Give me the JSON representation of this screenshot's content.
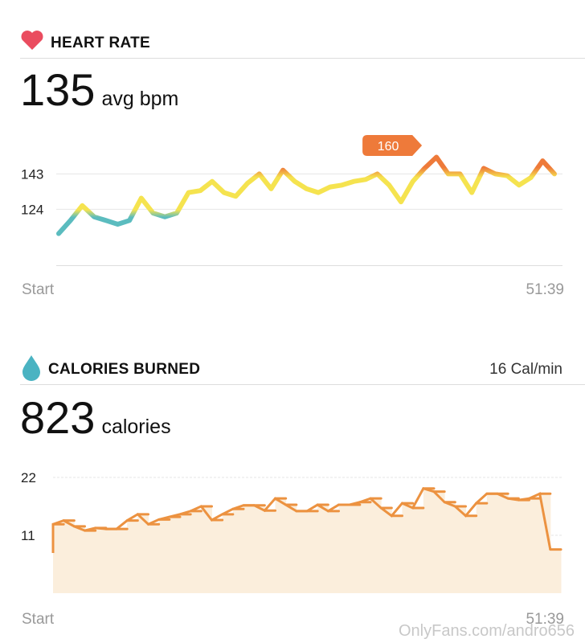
{
  "chart_data": [
    {
      "type": "line",
      "title": "HEART RATE",
      "summary_value": 135,
      "summary_unit": "avg bpm",
      "annotation": 160,
      "x_labels": [
        "Start",
        "51:39"
      ],
      "values": [
        111,
        118,
        126,
        120,
        118,
        116,
        118,
        130,
        122,
        120,
        122,
        133,
        134,
        139,
        133,
        131,
        138,
        143,
        135,
        145,
        139,
        135,
        133,
        136,
        137,
        139,
        140,
        143,
        137,
        128,
        139,
        146,
        152,
        143,
        143,
        133,
        146,
        143,
        142,
        137,
        141,
        150,
        143
      ],
      "ylim": [
        94,
        163
      ],
      "yticks": [
        143,
        124
      ],
      "grid": true,
      "colors": {
        "high": "#ee7a3a",
        "mid": "#f5e34f",
        "low": "#5bbcbf"
      }
    },
    {
      "type": "step",
      "title": "CALORIES BURNED",
      "rate_label": "16 Cal/min",
      "summary_value": 823,
      "summary_unit": "calories",
      "x_labels": [
        "Start",
        "51:39"
      ],
      "values": [
        13.1,
        13.8,
        12.7,
        11.9,
        12.4,
        12.2,
        12.2,
        13.8,
        15,
        13.1,
        14,
        14.5,
        15,
        15.6,
        16.5,
        13.9,
        15,
        16,
        16.7,
        16.7,
        15.7,
        18,
        16.8,
        15.6,
        15.6,
        16.8,
        15.6,
        16.8,
        16.8,
        17.3,
        18,
        16.2,
        14.7,
        17.1,
        16.2,
        19.9,
        19.3,
        17.3,
        16.5,
        14.7,
        17.1,
        18.9,
        18.9,
        18,
        17.7,
        18,
        18.9,
        8.3
      ],
      "ylim": [
        0,
        22
      ],
      "yticks": [
        22,
        11
      ],
      "grid": true,
      "color": "#ec9240",
      "fill": "#fbeedc"
    }
  ],
  "watermark": "OnlyFans.com/andro656"
}
